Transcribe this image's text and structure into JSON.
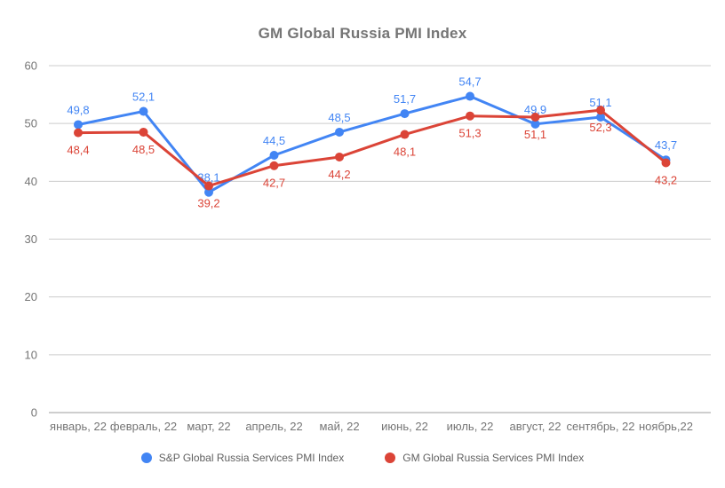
{
  "chart_data": {
    "type": "line",
    "title": "GM Global Russia PMI Index",
    "categories": [
      "январь, 22",
      "февраль, 22",
      "март, 22",
      "апрель, 22",
      "май, 22",
      "июнь, 22",
      "июль, 22",
      "август, 22",
      "сентябрь, 22",
      "ноябрь,22"
    ],
    "series": [
      {
        "name": "S&P Global Russia Services PMI Index",
        "color": "#4285f4",
        "label_position": "above",
        "values": [
          49.8,
          52.1,
          38.1,
          44.5,
          48.5,
          51.7,
          54.7,
          49.9,
          51.1,
          43.7
        ]
      },
      {
        "name": "GM Global Russia Services PMI Index",
        "color": "#db4437",
        "label_position": "below",
        "values": [
          48.4,
          48.5,
          39.2,
          42.7,
          44.2,
          48.1,
          51.3,
          51.1,
          52.3,
          43.2
        ]
      }
    ],
    "ylim": [
      0,
      60
    ],
    "yticks": [
      0,
      10,
      20,
      30,
      40,
      50,
      60
    ],
    "grid": true,
    "legend_position": "bottom",
    "decimal_separator": ",",
    "colors": {
      "gridline": "#cccccc",
      "baseline": "#9e9e9e",
      "axis_text": "#757575"
    }
  }
}
